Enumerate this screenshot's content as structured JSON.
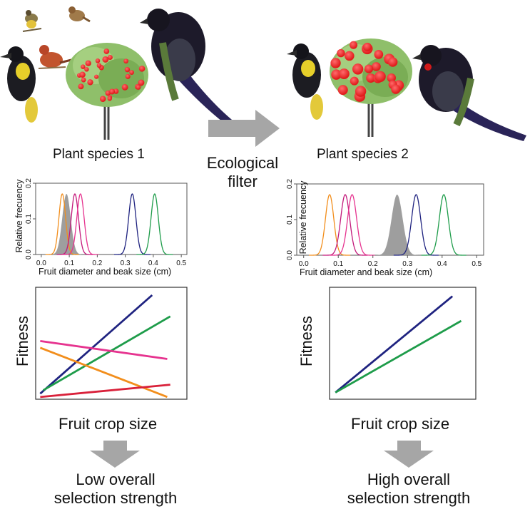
{
  "left": {
    "plant_label": "Plant species 1",
    "crop_label": "Fruit crop size",
    "outcome_line1": "Low overall",
    "outcome_line2": "selection strength"
  },
  "right": {
    "plant_label": "Plant species 2",
    "crop_label": "Fruit crop size",
    "outcome_line1": "High overall",
    "outcome_line2": "selection strength"
  },
  "filter": {
    "line1": "Ecological",
    "line2": "filter"
  },
  "colors": {
    "orange": "#f28e1c",
    "pink": "#e6338f",
    "red": "#d9213a",
    "navy": "#1f2380",
    "green": "#1e9c4a",
    "gray": "#9e9e9e",
    "magenta": "#c2187a"
  },
  "chart_data": [
    {
      "id": "density-left",
      "type": "line",
      "xlabel": "Fruit diameter and beak size (cm)",
      "ylabel": "Relative frecuency",
      "xlim": [
        -0.02,
        0.52
      ],
      "ylim": [
        0,
        0.2
      ],
      "xticks": [
        "0.0",
        "0.1",
        "0.2",
        "0.3",
        "0.4",
        "0.5"
      ],
      "yticks": [
        "0.0",
        "0.1",
        "0.2"
      ],
      "filled": {
        "mean": 0.09,
        "sd": 0.015,
        "peak": 0.17
      },
      "series": [
        {
          "color": "orange",
          "mean": 0.075,
          "sd": 0.012,
          "peak": 0.17
        },
        {
          "color": "magenta",
          "mean": 0.12,
          "sd": 0.013,
          "peak": 0.17
        },
        {
          "color": "pink",
          "mean": 0.14,
          "sd": 0.013,
          "peak": 0.17
        },
        {
          "color": "navy",
          "mean": 0.325,
          "sd": 0.013,
          "peak": 0.17
        },
        {
          "color": "green",
          "mean": 0.405,
          "sd": 0.013,
          "peak": 0.17
        }
      ]
    },
    {
      "id": "density-right",
      "type": "line",
      "xlabel": "Fruit diameter and beak size (cm)",
      "ylabel": "Relative frecuency",
      "xlim": [
        -0.02,
        0.52
      ],
      "ylim": [
        0,
        0.2
      ],
      "xticks": [
        "0.0",
        "0.1",
        "0.2",
        "0.3",
        "0.4",
        "0.5"
      ],
      "yticks": [
        "0.0",
        "0.1",
        "0.2"
      ],
      "filled": {
        "mean": 0.27,
        "sd": 0.016,
        "peak": 0.17
      },
      "series": [
        {
          "color": "orange",
          "mean": 0.075,
          "sd": 0.012,
          "peak": 0.17
        },
        {
          "color": "magenta",
          "mean": 0.12,
          "sd": 0.013,
          "peak": 0.17
        },
        {
          "color": "pink",
          "mean": 0.14,
          "sd": 0.013,
          "peak": 0.17
        },
        {
          "color": "navy",
          "mean": 0.325,
          "sd": 0.013,
          "peak": 0.17
        },
        {
          "color": "green",
          "mean": 0.405,
          "sd": 0.013,
          "peak": 0.17
        }
      ]
    },
    {
      "id": "fitness-left",
      "type": "line",
      "xlabel": "Fruit crop size",
      "ylabel": "Fitness",
      "xlim": [
        0,
        1
      ],
      "ylim": [
        0,
        1
      ],
      "series": [
        {
          "color": "navy",
          "x": [
            0.03,
            0.77
          ],
          "y": [
            0.05,
            0.93
          ]
        },
        {
          "color": "green",
          "x": [
            0.05,
            0.89
          ],
          "y": [
            0.08,
            0.74
          ]
        },
        {
          "color": "pink",
          "x": [
            0.03,
            0.87
          ],
          "y": [
            0.52,
            0.36
          ]
        },
        {
          "color": "orange",
          "x": [
            0.03,
            0.87
          ],
          "y": [
            0.46,
            0.02
          ]
        },
        {
          "color": "red",
          "x": [
            0.03,
            0.89
          ],
          "y": [
            0.02,
            0.13
          ]
        }
      ]
    },
    {
      "id": "fitness-right",
      "type": "line",
      "xlabel": "Fruit crop size",
      "ylabel": "Fitness",
      "xlim": [
        0,
        1
      ],
      "ylim": [
        0,
        1
      ],
      "series": [
        {
          "color": "navy",
          "x": [
            0.04,
            0.84
          ],
          "y": [
            0.06,
            0.92
          ]
        },
        {
          "color": "green",
          "x": [
            0.04,
            0.9
          ],
          "y": [
            0.06,
            0.7
          ]
        }
      ]
    }
  ]
}
